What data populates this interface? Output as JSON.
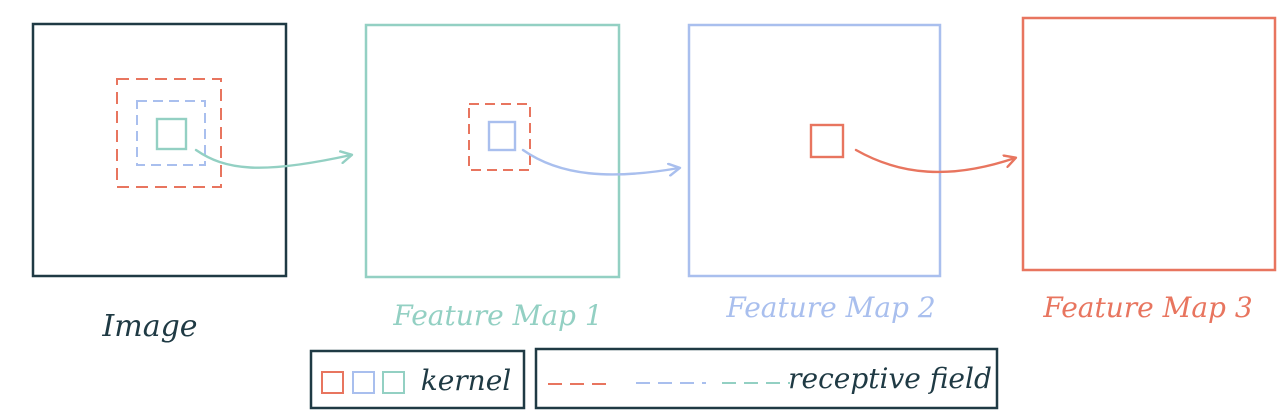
{
  "colors": {
    "dark": "#1f3a44",
    "teal": "#93d0c3",
    "blue": "#a9bfee",
    "red": "#e8755f"
  },
  "panels": [
    {
      "label": "Image"
    },
    {
      "label": "Feature Map 1"
    },
    {
      "label": "Feature Map 2"
    },
    {
      "label": "Feature Map 3"
    }
  ],
  "legend": {
    "kernel_label": "kernel",
    "receptive_field_label": "receptive field"
  }
}
